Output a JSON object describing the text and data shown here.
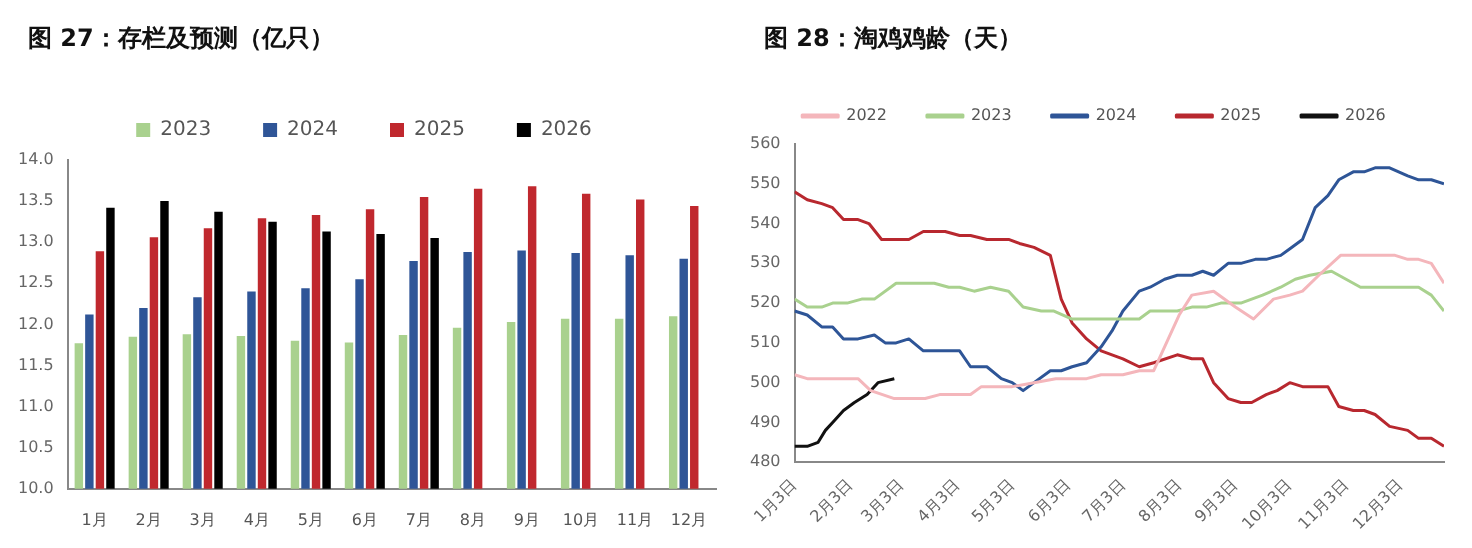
{
  "chart_data": [
    {
      "type": "bar",
      "title": "图 27：存栏及预测（亿只）",
      "categories": [
        "1月",
        "2月",
        "3月",
        "4月",
        "5月",
        "6月",
        "7月",
        "8月",
        "9月",
        "10月",
        "11月",
        "12月"
      ],
      "series": [
        {
          "name": "2023",
          "color": "#a9d18e",
          "values": [
            11.77,
            11.85,
            11.88,
            11.86,
            11.8,
            11.78,
            11.87,
            11.96,
            12.03,
            12.07,
            12.07,
            12.1
          ]
        },
        {
          "name": "2024",
          "color": "#2f5597",
          "values": [
            12.12,
            12.2,
            12.33,
            12.4,
            12.44,
            12.55,
            12.77,
            12.88,
            12.9,
            12.87,
            12.84,
            12.8
          ]
        },
        {
          "name": "2025",
          "color": "#c0282e",
          "values": [
            12.89,
            13.06,
            13.17,
            13.29,
            13.33,
            13.4,
            13.55,
            13.65,
            13.68,
            13.59,
            13.52,
            13.44
          ]
        },
        {
          "name": "2026",
          "color": "#000000",
          "values": [
            13.42,
            13.5,
            13.37,
            13.25,
            13.13,
            13.1,
            13.05,
            null,
            null,
            null,
            null,
            null
          ]
        }
      ],
      "ylim": [
        10,
        14
      ],
      "yticks": [
        {
          "value": 10,
          "label": "10.0"
        },
        {
          "value": 10.5,
          "label": "10.5"
        },
        {
          "value": 11,
          "label": "11.0"
        },
        {
          "value": 11.5,
          "label": "11.5"
        },
        {
          "value": 12,
          "label": "12.0"
        },
        {
          "value": 12.5,
          "label": "12.5"
        },
        {
          "value": 13,
          "label": "13.0"
        },
        {
          "value": 13.5,
          "label": "13.5"
        },
        {
          "value": 14,
          "label": "14.0"
        }
      ],
      "grid": false,
      "legend": "top"
    },
    {
      "type": "line",
      "title": "图 28：淘鸡鸡龄（天）",
      "series": [
        {
          "name": "2022",
          "color": "#f4b6bb",
          "x": [
            "--01-03",
            "--01-10",
            "--02-03",
            "--02-07",
            "--02-14",
            "--02-27",
            "--03-16",
            "--03-24",
            "--04-10",
            "--04-16",
            "--05-03",
            "--05-15",
            "--05-27",
            "--06-13",
            "--06-21",
            "--07-03",
            "--07-12",
            "--07-20",
            "--08-03",
            "--08-10",
            "--08-22",
            "--09-03",
            "--09-13",
            "--09-24",
            "--10-03",
            "--10-10",
            "--10-19",
            "--10-31",
            "--11-30",
            "--12-07",
            "--12-13",
            "--12-20",
            "--12-27"
          ],
          "values": [
            502,
            501,
            501,
            501,
            498,
            496,
            496,
            497,
            497,
            499,
            499,
            500,
            501,
            501,
            502,
            502,
            503,
            503,
            517,
            522,
            523,
            519,
            516,
            521,
            522,
            523,
            527,
            532,
            532,
            531,
            531,
            530,
            525
          ]
        },
        {
          "name": "2023",
          "color": "#a9d18e",
          "x": [
            "--01-03",
            "--01-10",
            "--01-18",
            "--01-24",
            "--02-01",
            "--02-09",
            "--02-16",
            "--02-28",
            "--03-21",
            "--03-29",
            "--04-04",
            "--04-12",
            "--04-21",
            "--05-01",
            "--05-09",
            "--05-19",
            "--05-26",
            "--06-05",
            "--06-27",
            "--07-12",
            "--07-18",
            "--08-02",
            "--08-10",
            "--08-18",
            "--08-26",
            "--09-06",
            "--09-18",
            "--09-28",
            "--10-06",
            "--10-14",
            "--10-26",
            "--11-03",
            "--11-11",
            "--11-27",
            "--12-13",
            "--12-20",
            "--12-27"
          ],
          "values": [
            521,
            519,
            519,
            520,
            520,
            521,
            521,
            525,
            525,
            524,
            524,
            523,
            524,
            523,
            519,
            518,
            518,
            516,
            516,
            516,
            518,
            518,
            519,
            519,
            520,
            520,
            522,
            524,
            526,
            527,
            528,
            526,
            524,
            524,
            524,
            522,
            518
          ]
        },
        {
          "name": "2024",
          "color": "#2e5597",
          "x": [
            "--01-03",
            "--01-10",
            "--01-18",
            "--01-24",
            "--01-30",
            "--02-07",
            "--02-16",
            "--02-22",
            "--02-28",
            "--03-07",
            "--03-15",
            "--04-04",
            "--04-10",
            "--04-19",
            "--04-27",
            "--05-03",
            "--05-09",
            "--05-15",
            "--05-24",
            "--05-30",
            "--06-05",
            "--06-13",
            "--06-21",
            "--06-27",
            "--07-03",
            "--07-12",
            "--07-18",
            "--07-26",
            "--08-02",
            "--08-10",
            "--08-16",
            "--08-22",
            "--08-30",
            "--09-06",
            "--09-14",
            "--09-20",
            "--09-28",
            "--10-04",
            "--10-10",
            "--10-17",
            "--10-24",
            "--10-30",
            "--11-07",
            "--11-13",
            "--11-19",
            "--11-27",
            "--12-07",
            "--12-13",
            "--12-20",
            "--12-27"
          ],
          "values": [
            518,
            517,
            514,
            514,
            511,
            511,
            512,
            510,
            510,
            511,
            508,
            508,
            504,
            504,
            501,
            500,
            498,
            500,
            503,
            503,
            504,
            505,
            509,
            513,
            518,
            523,
            524,
            526,
            527,
            527,
            528,
            527,
            530,
            530,
            531,
            531,
            532,
            534,
            536,
            544,
            547,
            551,
            553,
            553,
            554,
            554,
            552,
            551,
            551,
            550
          ]
        },
        {
          "name": "2025",
          "color": "#b8282f",
          "x": [
            "--01-03",
            "--01-10",
            "--01-18",
            "--01-24",
            "--01-30",
            "--02-07",
            "--02-13",
            "--02-20",
            "--03-03",
            "--03-07",
            "--03-15",
            "--03-27",
            "--04-04",
            "--04-10",
            "--04-19",
            "--05-01",
            "--05-07",
            "--05-15",
            "--05-24",
            "--05-30",
            "--06-05",
            "--06-13",
            "--06-21",
            "--06-27",
            "--07-03",
            "--07-12",
            "--07-20",
            "--08-02",
            "--08-10",
            "--08-16",
            "--08-22",
            "--08-30",
            "--09-06",
            "--09-12",
            "--09-20",
            "--09-26",
            "--10-03",
            "--10-10",
            "--10-24",
            "--10-30",
            "--11-07",
            "--11-13",
            "--11-19",
            "--11-27",
            "--12-07",
            "--12-13",
            "--12-20",
            "--12-27"
          ],
          "values": [
            548,
            546,
            545,
            544,
            541,
            541,
            540,
            536,
            536,
            536,
            538,
            538,
            537,
            537,
            536,
            536,
            535,
            534,
            532,
            521,
            515,
            511,
            508,
            507,
            506,
            504,
            505,
            507,
            506,
            506,
            500,
            496,
            495,
            495,
            497,
            498,
            500,
            499,
            499,
            494,
            493,
            493,
            492,
            489,
            488,
            486,
            486,
            484
          ]
        },
        {
          "name": "2026",
          "color": "#111111",
          "x": [
            "--01-03",
            "--01-10",
            "--01-16",
            "--01-20",
            "--01-24",
            "--01-30",
            "--02-05",
            "--02-12",
            "--02-18",
            "--02-27"
          ],
          "values": [
            484,
            484,
            485,
            488,
            490,
            493,
            495,
            497,
            500,
            501
          ]
        }
      ],
      "xlim": [
        "--01-03",
        "--12-27"
      ],
      "xticks": [
        {
          "value": "--01-03",
          "label": "1月3日"
        },
        {
          "value": "--02-03",
          "label": "2月3日"
        },
        {
          "value": "--03-03",
          "label": "3月3日"
        },
        {
          "value": "--04-03",
          "label": "4月3日"
        },
        {
          "value": "--05-03",
          "label": "5月3日"
        },
        {
          "value": "--06-03",
          "label": "6月3日"
        },
        {
          "value": "--07-03",
          "label": "7月3日"
        },
        {
          "value": "--08-03",
          "label": "8月3日"
        },
        {
          "value": "--09-03",
          "label": "9月3日"
        },
        {
          "value": "--10-03",
          "label": "10月3日"
        },
        {
          "value": "--11-03",
          "label": "11月3日"
        },
        {
          "value": "--12-03",
          "label": "12月3日"
        }
      ],
      "ylim": [
        480,
        560
      ],
      "yticks": [
        480,
        490,
        500,
        510,
        520,
        530,
        540,
        550,
        560
      ],
      "grid": false,
      "legend": "top",
      "marker": "none",
      "line_style": "solid"
    }
  ]
}
